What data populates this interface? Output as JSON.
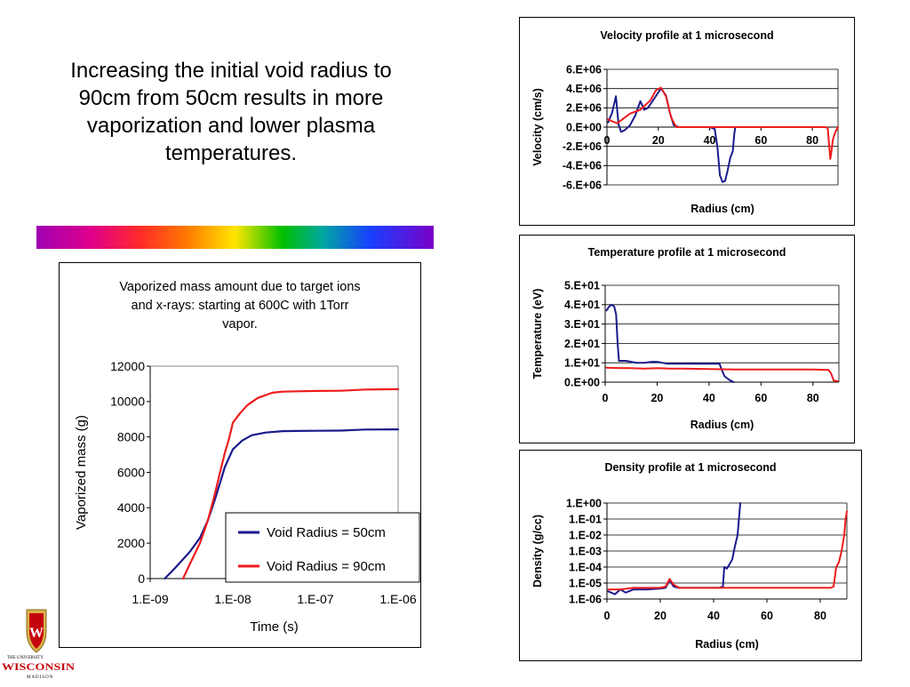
{
  "slide": {
    "headline": "Increasing the initial void radius to 90cm from 50cm results in more vaporization and lower plasma temperatures."
  },
  "logo": {
    "line1": "THE UNIVERSITY",
    "line2": "WISCONSIN",
    "line3": "MADISON",
    "colors": {
      "red": "#c5050c",
      "gold": "#d8b24a"
    }
  },
  "colors": {
    "blue": "#1a1a8c",
    "red": "#ee1c1c",
    "grid": "#000000"
  },
  "chart_data": [
    {
      "id": "vaporized",
      "type": "line",
      "title": [
        "Vaporized mass amount due to target ions",
        "and x-rays:  starting at 600C with 1Torr",
        "vapor."
      ],
      "xlabel": "Time (s)",
      "ylabel": "Vaporized mass (g)",
      "x_scale": "log",
      "xlim": [
        1e-09,
        1e-06
      ],
      "ylim": [
        0,
        12000
      ],
      "xticks": [
        1e-09,
        1e-08,
        1e-07,
        1e-06
      ],
      "xtick_labels": [
        "1.E-09",
        "1.E-08",
        "1.E-07",
        "1.E-06"
      ],
      "yticks": [
        0,
        2000,
        4000,
        6000,
        8000,
        10000,
        12000
      ],
      "ytick_labels": [
        "0",
        "2000",
        "4000",
        "6000",
        "8000",
        "10000",
        "12000"
      ],
      "grid": false,
      "legend_position": "bottom-right",
      "series": [
        {
          "name": "Void Radius = 50cm",
          "color": "#1a1a8c",
          "x": [
            1.5e-09,
            2e-09,
            3e-09,
            4e-09,
            5e-09,
            6e-09,
            7e-09,
            8e-09,
            1e-08,
            1.3e-08,
            1.7e-08,
            2.5e-08,
            4e-08,
            6e-08,
            1e-07,
            2e-07,
            4e-07,
            1e-06
          ],
          "y": [
            0,
            600,
            1500,
            2300,
            3300,
            4400,
            5400,
            6300,
            7300,
            7800,
            8100,
            8250,
            8330,
            8340,
            8350,
            8360,
            8420,
            8430
          ]
        },
        {
          "name": "Void Radius = 90cm",
          "color": "#ee1c1c",
          "x": [
            2.5e-09,
            3e-09,
            4e-09,
            5e-09,
            6e-09,
            7e-09,
            8e-09,
            9e-09,
            1e-08,
            1.2e-08,
            1.5e-08,
            2e-08,
            3e-08,
            4e-08,
            6e-08,
            1e-07,
            2e-07,
            4e-07,
            1e-06
          ],
          "y": [
            0,
            800,
            2000,
            3300,
            4700,
            6000,
            7100,
            7900,
            8800,
            9300,
            9800,
            10200,
            10500,
            10560,
            10580,
            10600,
            10610,
            10680,
            10700
          ]
        }
      ]
    },
    {
      "id": "velocity",
      "type": "line",
      "title": "Velocity profile at 1 microsecond",
      "xlabel": "Radius (cm)",
      "ylabel": "Velocity (cm/s)",
      "xlim": [
        0,
        90
      ],
      "ylim": [
        -6000000,
        6000000
      ],
      "xticks": [
        0,
        20,
        40,
        60,
        80
      ],
      "xtick_labels": [
        "0",
        "20",
        "40",
        "60",
        "80"
      ],
      "yticks": [
        6000000,
        4000000,
        2000000,
        0,
        -2000000,
        -4000000,
        -6000000
      ],
      "ytick_labels": [
        "6.E+06",
        "4.E+06",
        "2.E+06",
        "0.E+00",
        "-2.E+06",
        "-4.E+06",
        "-6.E+06"
      ],
      "grid": true,
      "series": [
        {
          "color": "#1a1a8c",
          "x": [
            0.5,
            2,
            3.5,
            4.5,
            5.5,
            7,
            9,
            11,
            13,
            14.5,
            16,
            19,
            21,
            23,
            24.5,
            26,
            28,
            40,
            42,
            43,
            44,
            45,
            46,
            47,
            48,
            49,
            49.6,
            50,
            50.5
          ],
          "y": [
            500000,
            1500000,
            3200000,
            300000,
            -500000,
            -300000,
            200000,
            1200000,
            2700000,
            1800000,
            2000000,
            3200000,
            4000000,
            3300000,
            1500000,
            200000,
            0,
            0,
            -200000,
            -2000000,
            -5000000,
            -5700000,
            -5600000,
            -4500000,
            -3200000,
            -2500000,
            -700000,
            0,
            0
          ]
        },
        {
          "color": "#ee1c1c",
          "x": [
            0.5,
            2,
            4,
            6,
            9,
            13,
            17,
            19,
            21,
            23,
            25,
            27,
            35,
            45,
            55,
            65,
            75,
            85,
            86,
            87,
            87.5,
            88,
            89,
            90
          ],
          "y": [
            800000,
            600000,
            400000,
            800000,
            1400000,
            1800000,
            2800000,
            3800000,
            4100000,
            3200000,
            1000000,
            0,
            0,
            0,
            0,
            0,
            0,
            0,
            -100000,
            -3300000,
            -2400000,
            -1300000,
            -500000,
            0
          ]
        }
      ]
    },
    {
      "id": "temperature",
      "type": "line",
      "title": "Temperature profile at 1 microsecond",
      "xlabel": "Radius (cm)",
      "ylabel": "Temperature (eV)",
      "xlim": [
        0,
        90
      ],
      "ylim": [
        0,
        50
      ],
      "xticks": [
        0,
        20,
        40,
        60,
        80
      ],
      "xtick_labels": [
        "0",
        "20",
        "40",
        "60",
        "80"
      ],
      "yticks": [
        50,
        40,
        30,
        20,
        10,
        0
      ],
      "ytick_labels": [
        "5.E+01",
        "4.E+01",
        "3.E+01",
        "2.E+01",
        "1.E+01",
        "0.E+00"
      ],
      "grid": true,
      "series": [
        {
          "color": "#1a1a8c",
          "x": [
            0.5,
            1.5,
            2.5,
            3.5,
            4.2,
            4.8,
            5.3,
            8,
            12,
            15,
            18,
            20,
            22,
            24,
            30,
            40,
            44,
            45,
            46,
            48,
            49.5
          ],
          "y": [
            37,
            39,
            40,
            39,
            35,
            20,
            11,
            11,
            10,
            10,
            10.5,
            10.5,
            10,
            9.5,
            9.5,
            9.5,
            9.5,
            6,
            3,
            1,
            0
          ]
        },
        {
          "color": "#ee1c1c",
          "x": [
            0.5,
            5,
            10,
            15,
            20,
            25,
            30,
            40,
            50,
            60,
            70,
            80,
            86,
            87,
            88,
            89.5
          ],
          "y": [
            7.5,
            7.3,
            7.2,
            7.0,
            7.2,
            7.0,
            7.0,
            6.8,
            6.5,
            6.5,
            6.5,
            6.5,
            6.3,
            4.5,
            0.8,
            0.5
          ]
        }
      ]
    },
    {
      "id": "density",
      "type": "line",
      "title": "Density profile at 1 microsecond",
      "xlabel": "Radius (cm)",
      "ylabel": "Density (g/cc)",
      "y_scale": "log",
      "xlim": [
        0,
        90
      ],
      "ylim": [
        1e-06,
        1
      ],
      "xticks": [
        0,
        20,
        40,
        60,
        80
      ],
      "xtick_labels": [
        "0",
        "20",
        "40",
        "60",
        "80"
      ],
      "yticks": [
        1,
        0.1,
        0.01,
        0.001,
        0.0001,
        1e-05,
        1e-06
      ],
      "ytick_labels": [
        "1.E+00",
        "1.E-01",
        "1.E-02",
        "1.E-03",
        "1.E-04",
        "1.E-05",
        "1.E-06"
      ],
      "grid": true,
      "series": [
        {
          "color": "#1a1a8c",
          "x": [
            0.5,
            3,
            5,
            7,
            10,
            15,
            20,
            22,
            23.5,
            25,
            27,
            35,
            42,
            43.5,
            44,
            45,
            46,
            47,
            48,
            49,
            49.5,
            50
          ],
          "y": [
            3e-06,
            2e-06,
            4e-06,
            2.5e-06,
            4e-06,
            4e-06,
            4.5e-06,
            5e-06,
            1.5e-05,
            6e-06,
            5e-06,
            5e-06,
            5e-06,
            6e-06,
            0.0001,
            8e-05,
            0.00015,
            0.0003,
            0.002,
            0.01,
            0.1,
            1
          ]
        },
        {
          "color": "#ee1c1c",
          "x": [
            0.5,
            5,
            10,
            15,
            20,
            22,
            23.5,
            25,
            27,
            35,
            45,
            55,
            65,
            75,
            84,
            85,
            86,
            87,
            88,
            89,
            89.5,
            90
          ],
          "y": [
            4e-06,
            4e-06,
            5e-06,
            5e-06,
            5e-06,
            6e-06,
            1.8e-05,
            8e-06,
            5e-06,
            5e-06,
            5e-06,
            5e-06,
            5e-06,
            5e-06,
            5e-06,
            6e-06,
            0.0001,
            0.0002,
            0.001,
            0.01,
            0.1,
            0.3
          ]
        }
      ]
    }
  ]
}
